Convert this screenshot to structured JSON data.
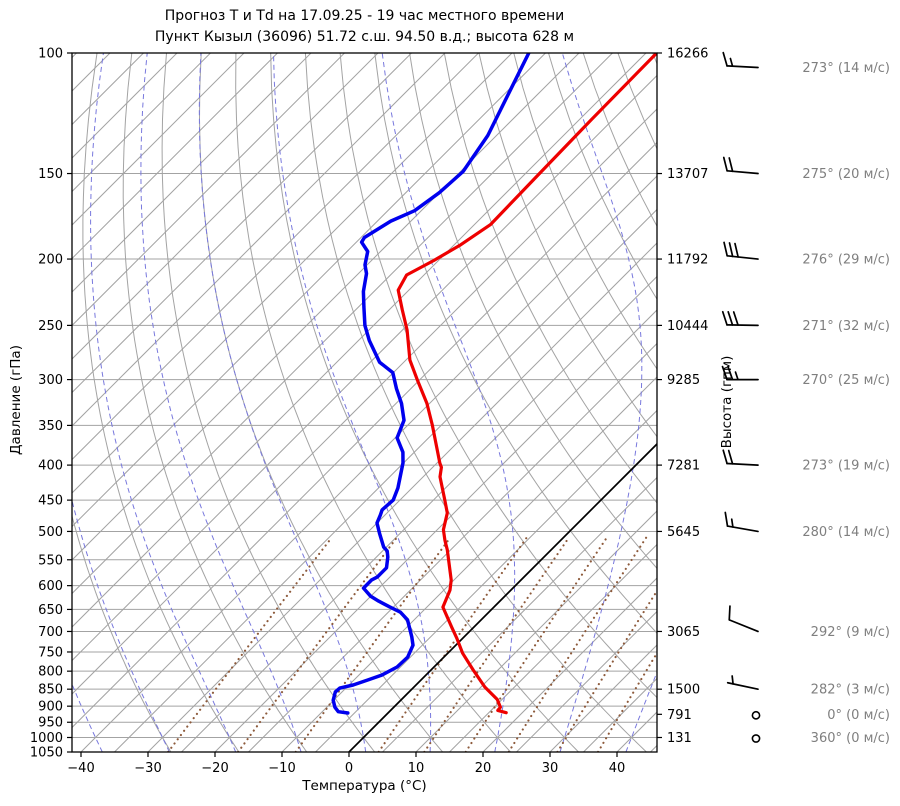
{
  "title": {
    "line1": "Прогноз Т и Td на 17.09.25 - 19 час местного времени",
    "line2": "Пункт Кызыл (36096) 51.72 с.ш. 94.50 в.д.; высота 628 м"
  },
  "axes": {
    "x_label": "Температура (°C)",
    "y_left_label": "Давление (гПа)",
    "y_right_label": "Высота (гпм)"
  },
  "chart_data": {
    "type": "line",
    "subtype": "skew-t-log-p",
    "title": "Прогноз Т и Td на 17.09.25 - 19 час местного времени",
    "subtitle": "Пункт Кызыл (36096) 51.72 с.ш. 94.50 в.д.; высота 628 м",
    "xlabel": "Температура (°C)",
    "ylabel": "Давление (гПа)",
    "ylabel_right": "Высота (гпм)",
    "x_axis": {
      "min": -41,
      "max": 46,
      "ticks": [
        -40,
        -30,
        -20,
        -10,
        0,
        10,
        20,
        30,
        40
      ],
      "skew_deg": 45
    },
    "y_axis": {
      "scale": "log",
      "top": 100,
      "bottom": 1050,
      "ticks": [
        100,
        150,
        200,
        250,
        300,
        350,
        400,
        450,
        500,
        550,
        600,
        650,
        700,
        750,
        800,
        850,
        900,
        950,
        1000,
        1050
      ]
    },
    "colors": {
      "temperature": "#ee0000",
      "dewpoint": "#0000ee",
      "grid": "#a3a3a3",
      "moist_adiabat": "#7878dd",
      "mixing_ratio": "#8d5a3b",
      "zero_isotherm": "#000000",
      "wind_text": "#7f7f7f",
      "barb": "#000000"
    },
    "background": {
      "isotherms": {
        "min": -145,
        "max": 45,
        "step": 5
      },
      "dry_adiabats": {
        "min": -30,
        "max": 150,
        "step": 10
      },
      "moist_adiabats": {
        "min": -40,
        "max": 40,
        "step": 10
      },
      "mixing_ratio_g_kg": [
        0.4,
        1,
        2,
        5,
        8,
        12,
        18,
        28,
        40
      ],
      "mixing_ratio_top_p": 500,
      "zero_isotherm_c": 0
    },
    "series": [
      {
        "name": "temperature",
        "units": [
          "гПа",
          "°C"
        ],
        "points": [
          [
            920,
            17.6
          ],
          [
            913,
            16.0
          ],
          [
            903,
            15.9
          ],
          [
            880,
            14.3
          ],
          [
            844,
            10.6
          ],
          [
            797,
            6.3
          ],
          [
            753,
            2.2
          ],
          [
            716,
            -0.9
          ],
          [
            690,
            -3.3
          ],
          [
            645,
            -7.6
          ],
          [
            609,
            -9.1
          ],
          [
            589,
            -10.4
          ],
          [
            575,
            -11.6
          ],
          [
            532,
            -15.5
          ],
          [
            515,
            -17.3
          ],
          [
            497,
            -19.1
          ],
          [
            470,
            -21.0
          ],
          [
            450,
            -23.3
          ],
          [
            416,
            -27.5
          ],
          [
            403,
            -28.7
          ],
          [
            397,
            -29.6
          ],
          [
            350,
            -36.3
          ],
          [
            325,
            -40.4
          ],
          [
            300,
            -45.4
          ],
          [
            281,
            -49.4
          ],
          [
            254,
            -54.3
          ],
          [
            237,
            -58.1
          ],
          [
            222,
            -61.6
          ],
          [
            211,
            -62.6
          ],
          [
            201,
            -60.7
          ],
          [
            191,
            -59.1
          ],
          [
            178,
            -57.6
          ],
          [
            150,
            -57.9
          ],
          [
            125,
            -58.2
          ],
          [
            100,
            -58.4
          ]
        ]
      },
      {
        "name": "dewpoint",
        "units": [
          "гПа",
          "°C"
        ],
        "points": [
          [
            921,
            -6.0
          ],
          [
            917,
            -7.6
          ],
          [
            903,
            -8.8
          ],
          [
            882,
            -10.1
          ],
          [
            858,
            -11.0
          ],
          [
            847,
            -10.9
          ],
          [
            838,
            -9.4
          ],
          [
            824,
            -7.9
          ],
          [
            811,
            -6.6
          ],
          [
            789,
            -5.5
          ],
          [
            763,
            -5.4
          ],
          [
            733,
            -6.4
          ],
          [
            713,
            -7.8
          ],
          [
            673,
            -11.0
          ],
          [
            656,
            -13.2
          ],
          [
            645,
            -15.5
          ],
          [
            632,
            -18.1
          ],
          [
            622,
            -20.0
          ],
          [
            605,
            -22.3
          ],
          [
            589,
            -22.3
          ],
          [
            583,
            -21.9
          ],
          [
            565,
            -21.9
          ],
          [
            545,
            -23.3
          ],
          [
            534,
            -24.3
          ],
          [
            527,
            -25.4
          ],
          [
            503,
            -28.1
          ],
          [
            486,
            -30.0
          ],
          [
            473,
            -30.7
          ],
          [
            465,
            -31.2
          ],
          [
            450,
            -31.0
          ],
          [
            432,
            -32.1
          ],
          [
            397,
            -35.1
          ],
          [
            383,
            -36.7
          ],
          [
            365,
            -39.7
          ],
          [
            344,
            -41.3
          ],
          [
            325,
            -44.2
          ],
          [
            309,
            -47.2
          ],
          [
            293,
            -50.1
          ],
          [
            283,
            -53.6
          ],
          [
            263,
            -58.4
          ],
          [
            250,
            -61.3
          ],
          [
            235,
            -64.2
          ],
          [
            223,
            -66.6
          ],
          [
            210,
            -68.8
          ],
          [
            204,
            -70.3
          ],
          [
            195,
            -71.9
          ],
          [
            189,
            -74.2
          ],
          [
            186,
            -74.5
          ],
          [
            176,
            -73.0
          ],
          [
            170,
            -71.0
          ],
          [
            160,
            -70.0
          ],
          [
            149,
            -69.6
          ],
          [
            132,
            -71.3
          ],
          [
            100,
            -77.5
          ]
        ]
      }
    ],
    "height_labels": [
      {
        "p": 100,
        "label": "16266"
      },
      {
        "p": 150,
        "label": "13707"
      },
      {
        "p": 200,
        "label": "11792"
      },
      {
        "p": 250,
        "label": "10444"
      },
      {
        "p": 300,
        "label": "9285"
      },
      {
        "p": 400,
        "label": "7281"
      },
      {
        "p": 500,
        "label": "5645"
      },
      {
        "p": 700,
        "label": "3065"
      },
      {
        "p": 850,
        "label": "1500"
      },
      {
        "p": 925,
        "label": "791"
      },
      {
        "p": 1000,
        "label": "131"
      }
    ],
    "winds": [
      {
        "p": 105,
        "dir": 273,
        "speed": 14,
        "label": "273° (14 м/с)"
      },
      {
        "p": 150,
        "dir": 275,
        "speed": 20,
        "label": "275° (20 м/с)"
      },
      {
        "p": 200,
        "dir": 276,
        "speed": 29,
        "label": "276° (29 м/с)"
      },
      {
        "p": 250,
        "dir": 271,
        "speed": 32,
        "label": "271° (32 м/с)"
      },
      {
        "p": 300,
        "dir": 270,
        "speed": 25,
        "label": "270° (25 м/с)"
      },
      {
        "p": 400,
        "dir": 273,
        "speed": 19,
        "label": "273° (19 м/с)"
      },
      {
        "p": 500,
        "dir": 280,
        "speed": 14,
        "label": "280° (14 м/с)"
      },
      {
        "p": 700,
        "dir": 292,
        "speed": 9,
        "label": "292° (9 м/с)"
      },
      {
        "p": 850,
        "dir": 282,
        "speed": 3,
        "label": "282° (3 м/с)"
      },
      {
        "p": 925,
        "dir": 0,
        "speed": 0,
        "label": "0° (0 м/с)"
      },
      {
        "p": 1000,
        "dir": 360,
        "speed": 0,
        "label": "360° (0 м/с)"
      }
    ]
  }
}
